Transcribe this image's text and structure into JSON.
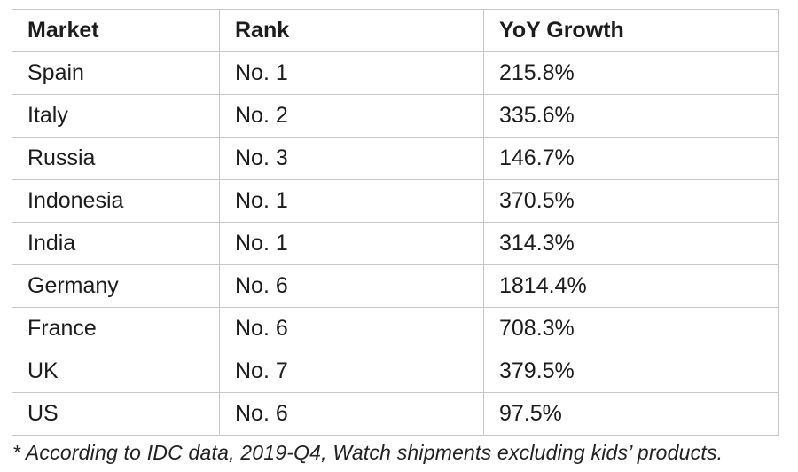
{
  "table": {
    "headers": [
      "Market",
      "Rank",
      "YoY Growth"
    ],
    "rows": [
      [
        "Spain",
        "No. 1",
        "215.8%"
      ],
      [
        "Italy",
        "No. 2",
        "335.6%"
      ],
      [
        "Russia",
        "No. 3",
        "146.7%"
      ],
      [
        "Indonesia",
        "No. 1",
        "370.5%"
      ],
      [
        "India",
        "No. 1",
        "314.3%"
      ],
      [
        "Germany",
        "No. 6",
        "1814.4%"
      ],
      [
        "France",
        "No. 6",
        "708.3%"
      ],
      [
        "UK",
        "No. 7",
        "379.5%"
      ],
      [
        "US",
        "No. 6",
        "97.5%"
      ]
    ]
  },
  "footnote": "* According to IDC data, 2019-Q4, Watch shipments excluding kids’ products.",
  "colors": {
    "border": "#c6c6c6",
    "text": "#1c1c1c",
    "background": "#ffffff"
  },
  "chart_data": {
    "type": "table",
    "columns": [
      "Market",
      "Rank",
      "YoY Growth"
    ],
    "rows": [
      {
        "market": "Spain",
        "rank": "No. 1",
        "yoy_growth_pct": 215.8
      },
      {
        "market": "Italy",
        "rank": "No. 2",
        "yoy_growth_pct": 335.6
      },
      {
        "market": "Russia",
        "rank": "No. 3",
        "yoy_growth_pct": 146.7
      },
      {
        "market": "Indonesia",
        "rank": "No. 1",
        "yoy_growth_pct": 370.5
      },
      {
        "market": "India",
        "rank": "No. 1",
        "yoy_growth_pct": 314.3
      },
      {
        "market": "Germany",
        "rank": "No. 6",
        "yoy_growth_pct": 1814.4
      },
      {
        "market": "France",
        "rank": "No. 6",
        "yoy_growth_pct": 708.3
      },
      {
        "market": "UK",
        "rank": "No. 7",
        "yoy_growth_pct": 379.5
      },
      {
        "market": "US",
        "rank": "No. 6",
        "yoy_growth_pct": 97.5
      }
    ],
    "footnote": "* According to IDC data, 2019-Q4, Watch shipments excluding kids’ products.",
    "title": "",
    "notes": "Static table image; grid borders light gray; header row bold; footnote italic below table"
  }
}
